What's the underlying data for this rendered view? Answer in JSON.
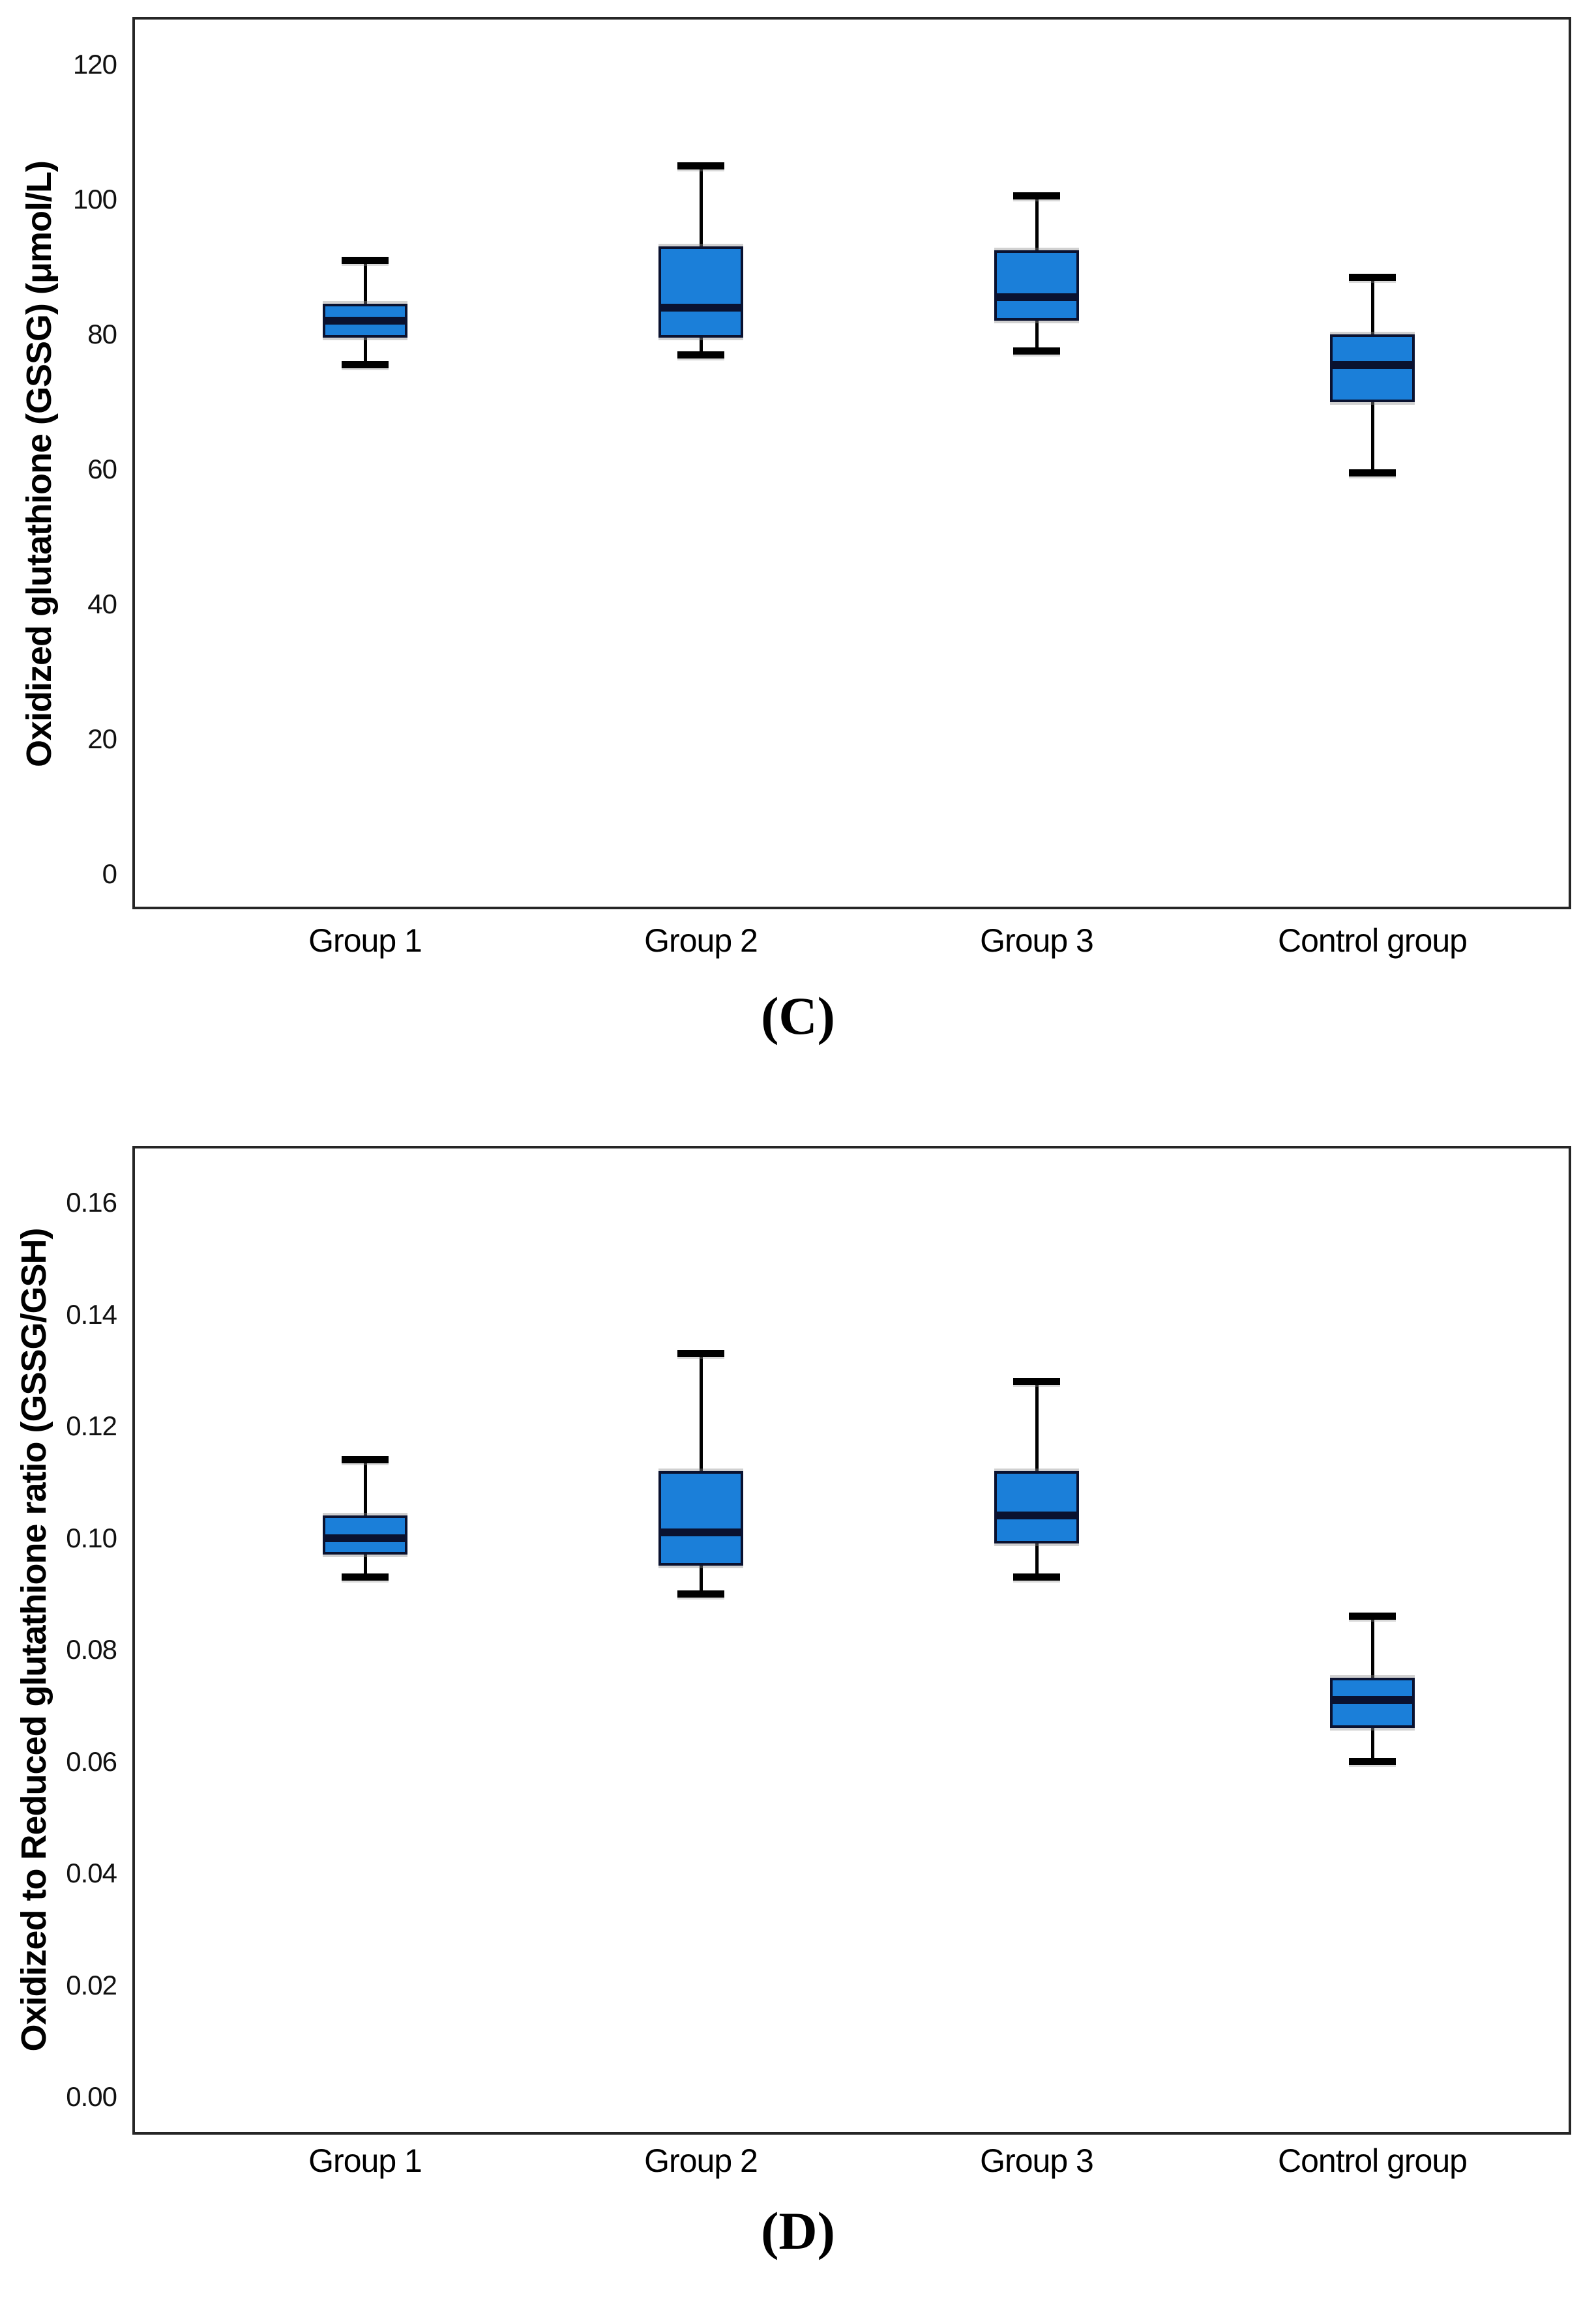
{
  "page": {
    "background": "#ffffff"
  },
  "colors": {
    "box_fill": "#1b7fd9",
    "box_edge": "#0a1230",
    "median_line": "#0a1230",
    "whisker": "#000000",
    "frame": "#262626",
    "text": "#000000"
  },
  "chart_data": [
    {
      "type": "box",
      "id": "C",
      "caption": "(C)",
      "ylabel": "Oxidized glutathione (GSSG) (μmol/L)",
      "xlabel": "",
      "categories": [
        "Group 1",
        "Group 2",
        "Group 3",
        "Control group"
      ],
      "y_tick_labels": [
        "120",
        "100",
        "80",
        "60",
        "40",
        "20",
        "0"
      ],
      "ylim": [
        0,
        126
      ],
      "grid": false,
      "legend": "none",
      "series": [
        {
          "name": "Group 1",
          "whisker_low": 75.5,
          "q1": 79.5,
          "median": 82,
          "q3": 84.5,
          "whisker_high": 91
        },
        {
          "name": "Group 2",
          "whisker_low": 77,
          "q1": 79.5,
          "median": 84,
          "q3": 93,
          "whisker_high": 105
        },
        {
          "name": "Group 3",
          "whisker_low": 77.5,
          "q1": 82,
          "median": 85.5,
          "q3": 92.5,
          "whisker_high": 100.5
        },
        {
          "name": "Control group",
          "whisker_low": 59.5,
          "q1": 70,
          "median": 75.5,
          "q3": 80,
          "whisker_high": 88.5
        }
      ]
    },
    {
      "type": "box",
      "id": "D",
      "caption": "(D)",
      "ylabel": "Oxidized to Reduced glutathione ratio (GSSG/GSH)",
      "xlabel": "",
      "categories": [
        "Group 1",
        "Group 2",
        "Group 3",
        "Control group"
      ],
      "y_tick_labels": [
        "0.16",
        "0.14",
        "0.12",
        "0.10",
        "0.08",
        "0.06",
        "0.04",
        "0.02",
        "0.00"
      ],
      "ylim": [
        0,
        0.168
      ],
      "grid": false,
      "legend": "none",
      "series": [
        {
          "name": "Group 1",
          "whisker_low": 0.093,
          "q1": 0.097,
          "median": 0.1,
          "q3": 0.104,
          "whisker_high": 0.114
        },
        {
          "name": "Group 2",
          "whisker_low": 0.09,
          "q1": 0.095,
          "median": 0.101,
          "q3": 0.112,
          "whisker_high": 0.133
        },
        {
          "name": "Group 3",
          "whisker_low": 0.093,
          "q1": 0.099,
          "median": 0.104,
          "q3": 0.112,
          "whisker_high": 0.128
        },
        {
          "name": "Control group",
          "whisker_low": 0.06,
          "q1": 0.066,
          "median": 0.071,
          "q3": 0.075,
          "whisker_high": 0.086
        }
      ]
    }
  ]
}
